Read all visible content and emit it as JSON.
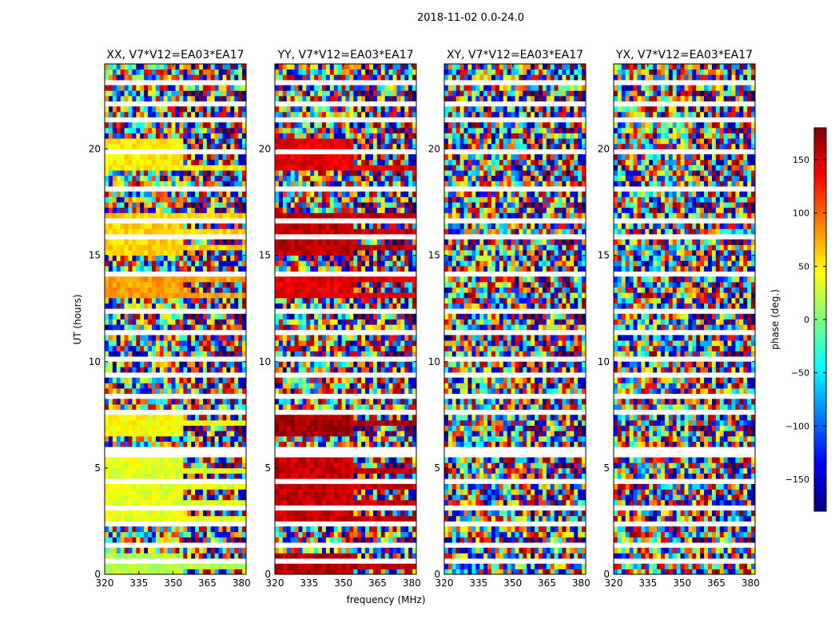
{
  "figure_title": "2018-11-02 0.0-24.0",
  "chart_data": {
    "type": "heatmap",
    "title": "2018-11-02 0.0-24.0",
    "xlabel": "frequency (MHz)",
    "ylabel": "UT (hours)",
    "xlim": [
      320,
      382
    ],
    "ylim": [
      0,
      24
    ],
    "xticks": [
      320,
      335,
      350,
      365,
      380
    ],
    "yticks": [
      0,
      5,
      10,
      15,
      20
    ],
    "panels": [
      {
        "title": "XX, V7*V12=EA03*EA17",
        "pol": "XX"
      },
      {
        "title": "YY, V7*V12=EA03*EA17",
        "pol": "YY"
      },
      {
        "title": "XY, V7*V12=EA03*EA17",
        "pol": "XY"
      },
      {
        "title": "YX, V7*V12=EA03*EA17",
        "pol": "YX"
      }
    ],
    "colorbar": {
      "label": "phase (deg.)",
      "range": [
        -180,
        180
      ],
      "ticks": [
        150,
        100,
        50,
        0,
        -50,
        -100,
        -150
      ],
      "tick_labels": [
        "150",
        "100",
        "50",
        "0",
        "−50",
        "−100",
        "−150"
      ],
      "colormap": "jet"
    }
  }
}
